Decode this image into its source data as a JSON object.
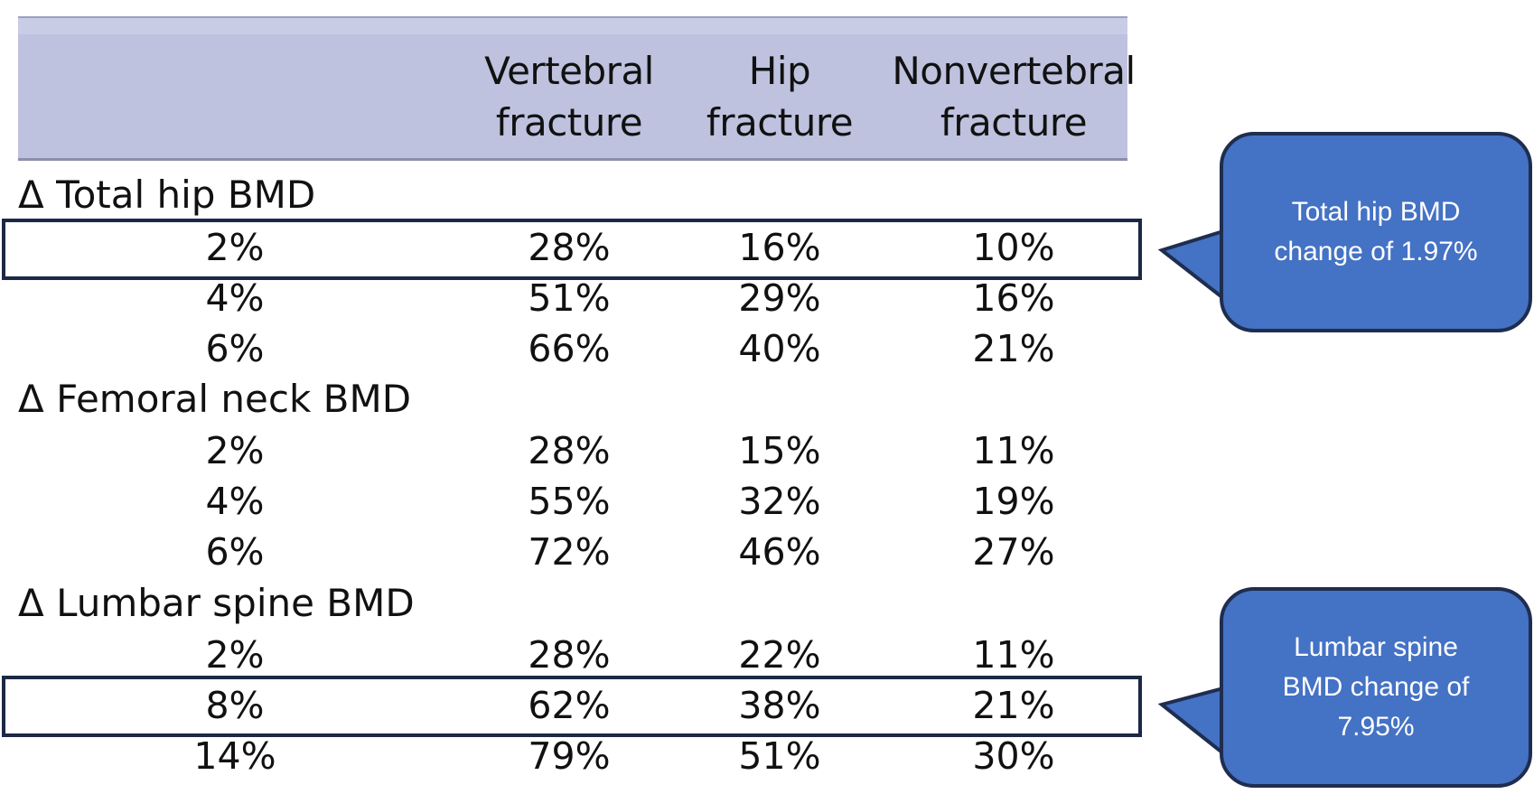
{
  "table": {
    "columns": [
      "",
      "Vertebral fracture",
      "Hip fracture",
      "Nonvertebral fracture"
    ],
    "header_lines": {
      "vertebral": [
        "Vertebral",
        "fracture"
      ],
      "hip": [
        "Hip",
        "fracture"
      ],
      "nonvertebral": [
        "Nonvertebral",
        "fracture"
      ]
    },
    "sections": [
      {
        "title": "Δ Total hip BMD",
        "rows": [
          [
            "2%",
            "28%",
            "16%",
            "10%"
          ],
          [
            "4%",
            "51%",
            "29%",
            "16%"
          ],
          [
            "6%",
            "66%",
            "40%",
            "21%"
          ]
        ]
      },
      {
        "title": "Δ Femoral neck BMD",
        "rows": [
          [
            "2%",
            "28%",
            "15%",
            "11%"
          ],
          [
            "4%",
            "55%",
            "32%",
            "19%"
          ],
          [
            "6%",
            "72%",
            "46%",
            "27%"
          ]
        ]
      },
      {
        "title": "Δ Lumbar spine BMD",
        "rows": [
          [
            "2%",
            "28%",
            "22%",
            "11%"
          ],
          [
            "8%",
            "62%",
            "38%",
            "21%"
          ],
          [
            "14%",
            "79%",
            "51%",
            "30%"
          ]
        ]
      }
    ]
  },
  "callouts": [
    {
      "text_lines": [
        "Total hip BMD",
        "change of 1.97%"
      ]
    },
    {
      "text_lines": [
        "Lumbar spine",
        "BMD change of",
        "7.95%"
      ]
    }
  ],
  "colors": {
    "header_band": "#bec2de",
    "callout_fill": "#4472c4",
    "callout_border": "#1f2d4f",
    "highlight_border": "#1c2845"
  }
}
